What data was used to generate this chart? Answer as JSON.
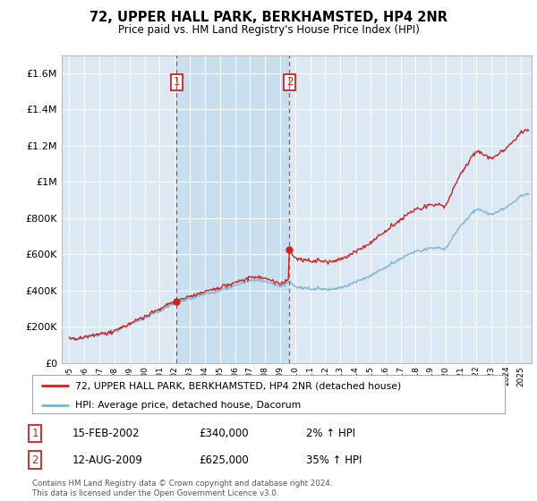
{
  "title": "72, UPPER HALL PARK, BERKHAMSTED, HP4 2NR",
  "subtitle": "Price paid vs. HM Land Registry's House Price Index (HPI)",
  "legend_line1": "72, UPPER HALL PARK, BERKHAMSTED, HP4 2NR (detached house)",
  "legend_line2": "HPI: Average price, detached house, Dacorum",
  "annotation1_date": "15-FEB-2002",
  "annotation1_price": "£340,000",
  "annotation1_hpi": "2% ↑ HPI",
  "annotation2_date": "12-AUG-2009",
  "annotation2_price": "£625,000",
  "annotation2_hpi": "35% ↑ HPI",
  "footer": "Contains HM Land Registry data © Crown copyright and database right 2024.\nThis data is licensed under the Open Government Licence v3.0.",
  "hpi_color": "#7ab4d8",
  "price_color": "#cc2222",
  "annotation_color": "#cc2222",
  "background_color": "#dce9f5",
  "shade_color": "#c8dff0",
  "sale1_x": 2002.12,
  "sale1_y": 340000,
  "sale2_x": 2009.62,
  "sale2_y": 625000,
  "ylim": [
    0,
    1700000
  ],
  "xlim_start": 1994.5,
  "xlim_end": 2025.7,
  "yticks": [
    0,
    200000,
    400000,
    600000,
    800000,
    1000000,
    1200000,
    1400000,
    1600000
  ]
}
